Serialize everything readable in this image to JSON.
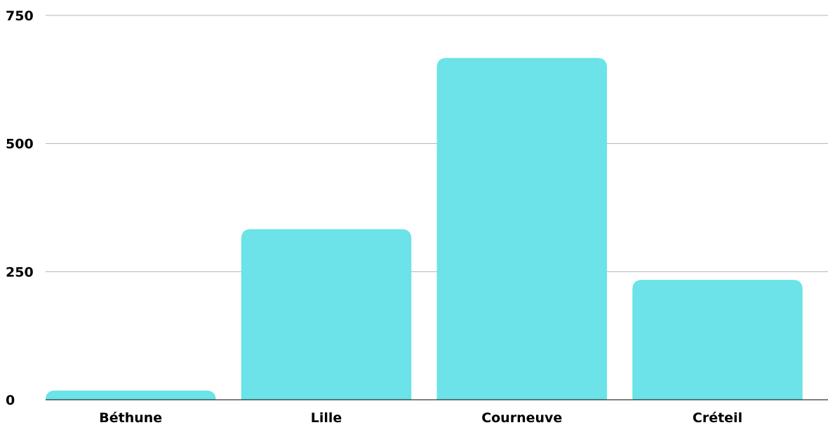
{
  "chart_data": {
    "type": "bar",
    "title": "",
    "xlabel": "",
    "ylabel": "",
    "categories": [
      "Béthune",
      "Lille",
      "Courneuve",
      "Créteil"
    ],
    "values": [
      18,
      333,
      667,
      234
    ],
    "ylim": [
      0,
      750
    ],
    "yticks": [
      "0",
      "250",
      "500",
      "750"
    ],
    "grid": true,
    "legend": "none",
    "colors": {
      "bar": "#6be3e8",
      "grid": "#b3b3b3",
      "axis": "#000000",
      "text": "#000000"
    }
  }
}
